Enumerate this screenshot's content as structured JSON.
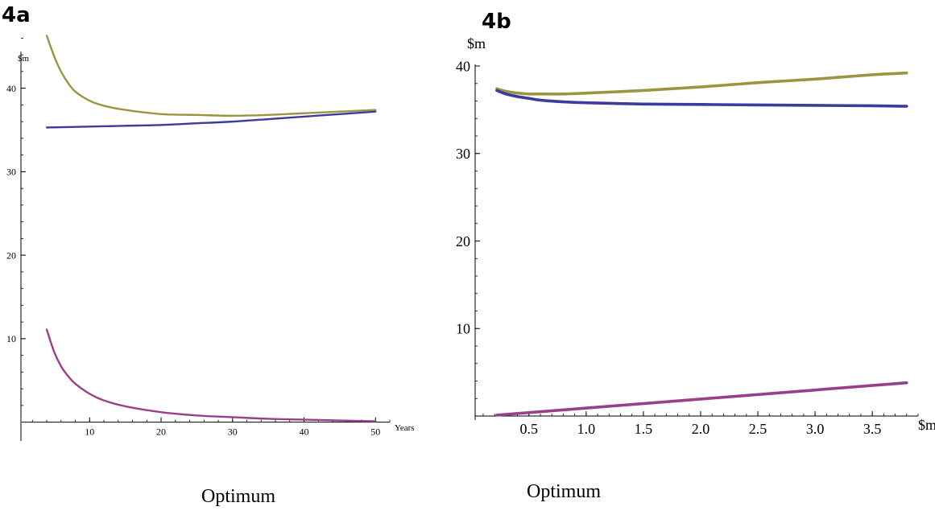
{
  "panels": {
    "a": {
      "label": "4a",
      "caption": "Optimum"
    },
    "b": {
      "label": "4b",
      "caption": "Optimum"
    }
  },
  "chart_data": [
    {
      "type": "line",
      "xlabel": "Years",
      "ylabel": "$m",
      "xticks": [
        10,
        20,
        30,
        40,
        50
      ],
      "yticks": [
        10,
        20,
        30,
        40
      ],
      "xlim": [
        0.5,
        52
      ],
      "ylim": [
        -1,
        47
      ],
      "series": [
        {
          "color": "#9c9540",
          "x": [
            4,
            5,
            6,
            7,
            8,
            10,
            12,
            15,
            20,
            25,
            30,
            35,
            40,
            45,
            50
          ],
          "y": [
            46.3,
            43.9,
            42.0,
            40.6,
            39.6,
            38.5,
            37.9,
            37.4,
            36.9,
            36.8,
            36.7,
            36.8,
            37.0,
            37.2,
            37.4
          ]
        },
        {
          "color": "#3c3c9c",
          "x": [
            4,
            10,
            15,
            20,
            25,
            30,
            35,
            40,
            45,
            50
          ],
          "y": [
            35.3,
            35.4,
            35.5,
            35.6,
            35.8,
            36.0,
            36.3,
            36.6,
            36.9,
            37.2
          ]
        },
        {
          "color": "#9b3f8a",
          "x": [
            4,
            5,
            6,
            7,
            8,
            10,
            12,
            15,
            20,
            25,
            30,
            35,
            40,
            45,
            50
          ],
          "y": [
            11.1,
            8.5,
            6.7,
            5.5,
            4.6,
            3.4,
            2.6,
            1.9,
            1.2,
            0.8,
            0.6,
            0.4,
            0.3,
            0.2,
            0.1
          ]
        }
      ]
    },
    {
      "type": "line",
      "xlabel": "$m",
      "ylabel": "$m",
      "xticks": [
        0.5,
        1.0,
        1.5,
        2.0,
        2.5,
        3.0,
        3.5
      ],
      "yticks": [
        10,
        20,
        30,
        40
      ],
      "xlim": [
        0.03,
        3.9
      ],
      "ylim": [
        0,
        40
      ],
      "series": [
        {
          "color": "#9c9540",
          "x": [
            0.22,
            0.3,
            0.4,
            0.5,
            0.6,
            0.8,
            1.0,
            1.5,
            2.0,
            2.5,
            3.0,
            3.5,
            3.8
          ],
          "y": [
            37.4,
            37.1,
            36.9,
            36.8,
            36.8,
            36.8,
            36.9,
            37.2,
            37.6,
            38.1,
            38.5,
            39.0,
            39.2
          ]
        },
        {
          "color": "#3c3c9c",
          "x": [
            0.22,
            0.3,
            0.4,
            0.5,
            0.6,
            0.8,
            1.0,
            1.5,
            2.0,
            2.5,
            3.0,
            3.5,
            3.8
          ],
          "y": [
            37.2,
            36.8,
            36.5,
            36.3,
            36.1,
            35.9,
            35.8,
            35.65,
            35.6,
            35.55,
            35.5,
            35.45,
            35.4
          ]
        },
        {
          "color": "#9b3f8a",
          "x": [
            0.22,
            3.8
          ],
          "y": [
            0.1,
            3.8
          ]
        }
      ]
    }
  ]
}
